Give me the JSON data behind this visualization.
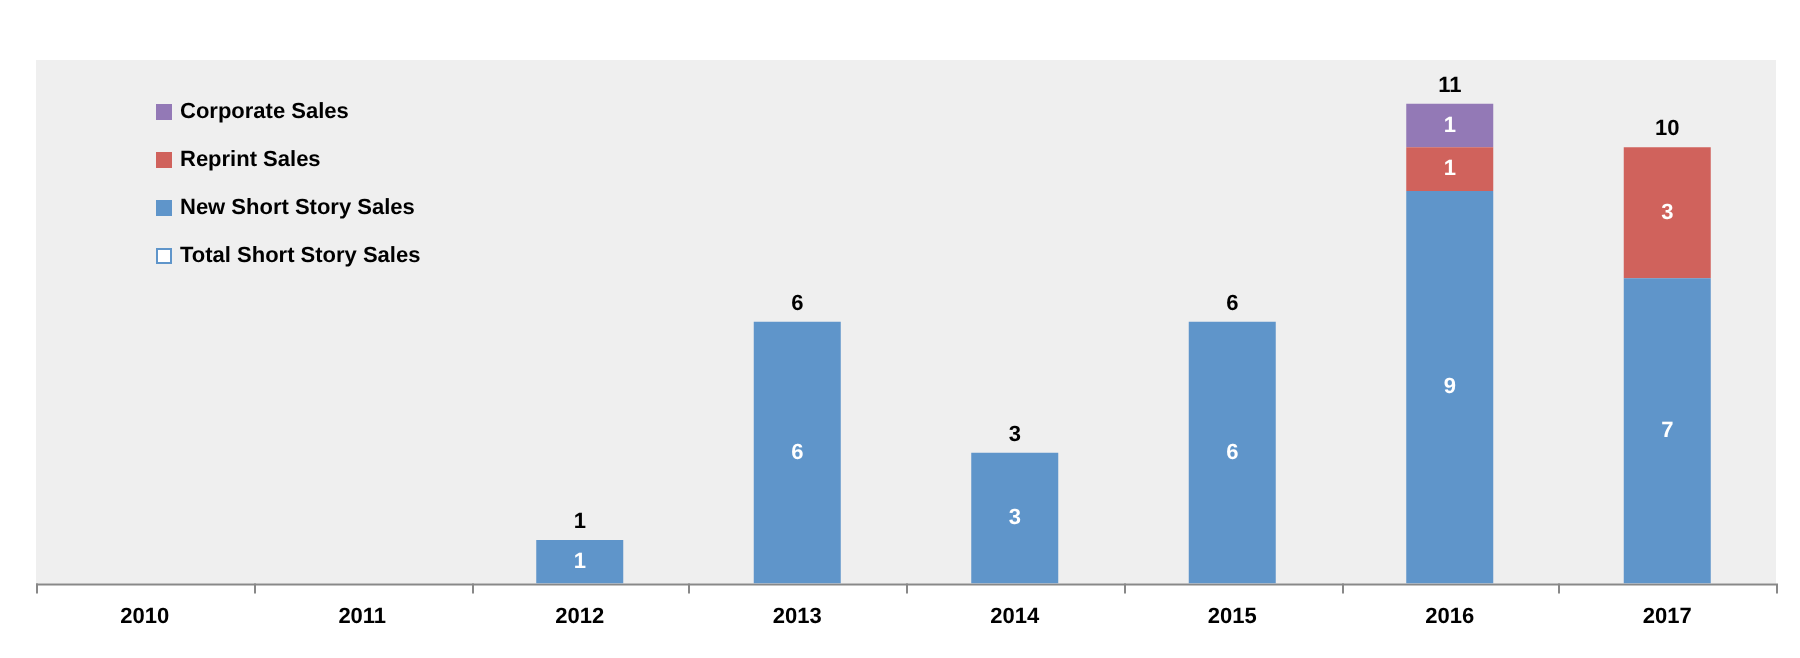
{
  "chart_data": {
    "type": "bar",
    "stacked": true,
    "categories": [
      "2010",
      "2011",
      "2012",
      "2013",
      "2014",
      "2015",
      "2016",
      "2017"
    ],
    "series": [
      {
        "name": "New Short Story Sales",
        "color": "#5f95ca",
        "values": [
          null,
          null,
          1,
          6,
          3,
          6,
          9,
          7
        ]
      },
      {
        "name": "Reprint Sales",
        "color": "#d0625c",
        "values": [
          null,
          null,
          null,
          null,
          null,
          null,
          1,
          3
        ]
      },
      {
        "name": "Corporate Sales",
        "color": "#9379b6",
        "values": [
          null,
          null,
          null,
          null,
          null,
          null,
          1,
          null
        ]
      },
      {
        "name": "Total Short Story Sales",
        "color": "#5f95ca",
        "values": [
          null,
          null,
          null,
          null,
          null,
          null,
          null,
          null
        ]
      }
    ],
    "totals": [
      null,
      null,
      "1",
      "6",
      "3",
      "6",
      "11",
      "10"
    ],
    "data_labels": true,
    "grid": false,
    "legend": "top left",
    "tick_labels": "x"
  }
}
